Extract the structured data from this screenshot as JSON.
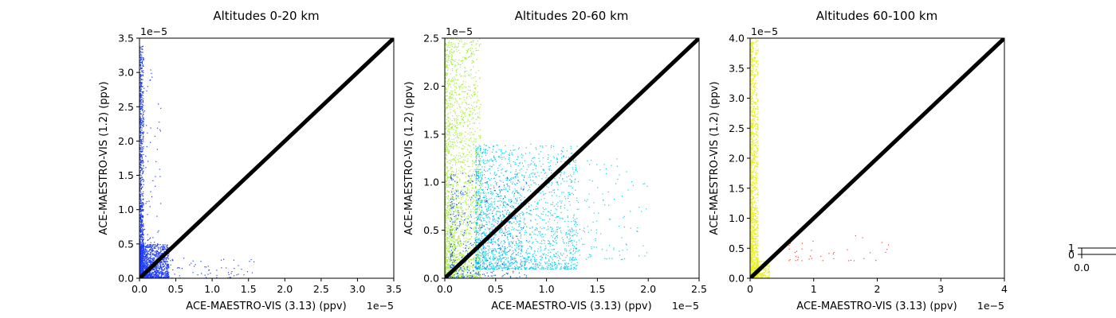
{
  "chart_data": [
    {
      "type": "scatter",
      "title": "Altitudes 0-20 km",
      "xlabel": "ACE-MAESTRO-VIS (3.13) (ppv)",
      "ylabel": "ACE-MAESTRO-VIS (1.2) (ppv)",
      "xlim": [
        0,
        3.5
      ],
      "ylim": [
        0,
        3.5
      ],
      "x_ticks": [
        "0.0",
        "0.5",
        "1.0",
        "1.5",
        "2.0",
        "2.5",
        "3.0",
        "3.5"
      ],
      "y_ticks": [
        "0.0",
        "0.5",
        "1.0",
        "1.5",
        "2.0",
        "2.5",
        "3.0",
        "3.5"
      ],
      "x_offset": "1e−5",
      "y_offset": "1e−5",
      "reference_line": {
        "x": [
          0,
          3.5
        ],
        "y": [
          0,
          3.5
        ],
        "color": "#000000"
      },
      "point_color": "#1f3cff",
      "clusters": [
        {
          "x": [
            0,
            0.05
          ],
          "y": [
            0,
            3.4
          ],
          "count": 900,
          "color": "#1f3cff"
        },
        {
          "x": [
            0,
            0.4
          ],
          "y": [
            0,
            0.5
          ],
          "count": 1400,
          "color": "#1f3cff"
        },
        {
          "x": [
            0,
            1.6
          ],
          "y": [
            0,
            0.3
          ],
          "count": 120,
          "color": "#1f3cff"
        },
        {
          "x": [
            0.05,
            0.3
          ],
          "y": [
            0.5,
            3.2
          ],
          "count": 60,
          "color": "#1f3cff"
        }
      ]
    },
    {
      "type": "scatter",
      "title": "Altitudes 20-60 km",
      "xlabel": "ACE-MAESTRO-VIS (3.13) (ppv)",
      "ylabel": "ACE-MAESTRO-VIS (1.2) (ppv)",
      "xlim": [
        0,
        2.5
      ],
      "ylim": [
        0,
        2.5
      ],
      "x_ticks": [
        "0.0",
        "0.5",
        "1.0",
        "1.5",
        "2.0",
        "2.5"
      ],
      "y_ticks": [
        "0.0",
        "0.5",
        "1.0",
        "1.5",
        "2.0",
        "2.5"
      ],
      "x_offset": "1e−5",
      "y_offset": "1e−5",
      "reference_line": {
        "x": [
          0,
          2.5
        ],
        "y": [
          0,
          2.5
        ],
        "color": "#000000"
      },
      "clusters": [
        {
          "x": [
            0,
            0.35
          ],
          "y": [
            0,
            2.5
          ],
          "count": 2200,
          "color": "#a8f040"
        },
        {
          "x": [
            0.3,
            1.3
          ],
          "y": [
            0.1,
            1.4
          ],
          "count": 2000,
          "color": "#10d0f0"
        },
        {
          "x": [
            0.05,
            0.8
          ],
          "y": [
            0,
            1.1
          ],
          "count": 500,
          "color": "#1e5af0"
        },
        {
          "x": [
            1.2,
            2.0
          ],
          "y": [
            0.2,
            1.3
          ],
          "count": 150,
          "color": "#10d0f0"
        }
      ]
    },
    {
      "type": "scatter",
      "title": "Altitudes 60-100 km",
      "xlabel": "ACE-MAESTRO-VIS (3.13) (ppv)",
      "ylabel": "ACE-MAESTRO-VIS (1.2) (ppv)",
      "xlim": [
        0,
        4
      ],
      "ylim": [
        0,
        4
      ],
      "x_ticks": [
        "0",
        "1",
        "2",
        "3",
        "4"
      ],
      "y_ticks": [
        "0.0",
        "0.5",
        "1.0",
        "1.5",
        "2.0",
        "2.5",
        "3.0",
        "3.5",
        "4.0"
      ],
      "x_offset": "1e−5",
      "y_offset": "1e−5",
      "reference_line": {
        "x": [
          0,
          4
        ],
        "y": [
          0,
          4
        ],
        "color": "#000000"
      },
      "clusters": [
        {
          "x": [
            0,
            0.12
          ],
          "y": [
            0,
            4.0
          ],
          "count": 1600,
          "color": "#e8f020"
        },
        {
          "x": [
            0.1,
            0.3
          ],
          "y": [
            0,
            0.3
          ],
          "count": 200,
          "color": "#e8f020"
        },
        {
          "x": [
            0.6,
            2.2
          ],
          "y": [
            0.3,
            0.75
          ],
          "count": 40,
          "color": "#ff4020"
        }
      ]
    }
  ],
  "colorbar": {
    "y_ticks": [
      "1",
      "0"
    ],
    "x_tick": "0.0"
  }
}
